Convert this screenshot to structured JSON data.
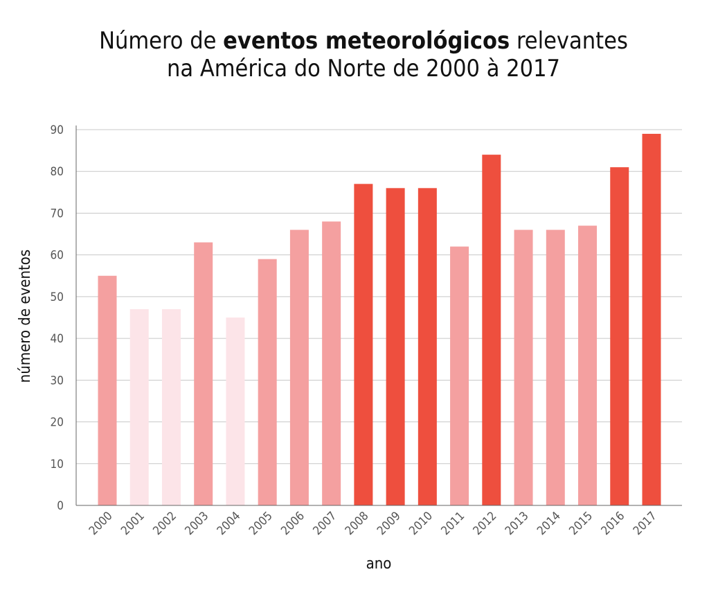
{
  "chart_data": {
    "type": "bar",
    "title": {
      "line1_pre": "Número de ",
      "line1_bold": "eventos meteorológicos",
      "line1_post": " relevantes",
      "line2": "na América do Norte de 2000 à 2017"
    },
    "xlabel": "ano",
    "ylabel": "número de eventos",
    "ylim": [
      0,
      90
    ],
    "yticks": [
      0,
      10,
      20,
      30,
      40,
      50,
      60,
      70,
      80,
      90
    ],
    "grid": true,
    "categories": [
      "2000",
      "2001",
      "2002",
      "2003",
      "2004",
      "2005",
      "2006",
      "2007",
      "2008",
      "2009",
      "2010",
      "2011",
      "2012",
      "2013",
      "2014",
      "2015",
      "2016",
      "2017"
    ],
    "values": [
      55,
      47,
      47,
      63,
      45,
      59,
      66,
      68,
      77,
      76,
      76,
      62,
      84,
      66,
      66,
      67,
      81,
      89
    ],
    "bar_colors": [
      "#f4a0a0",
      "#fce4e8",
      "#fce4e8",
      "#f4a0a0",
      "#fce4e8",
      "#f4a0a0",
      "#f4a0a0",
      "#f4a0a0",
      "#ee4f3e",
      "#ee4f3e",
      "#ee4f3e",
      "#f4a0a0",
      "#ee4f3e",
      "#f4a0a0",
      "#f4a0a0",
      "#f4a0a0",
      "#ee4f3e",
      "#ee4f3e"
    ]
  }
}
